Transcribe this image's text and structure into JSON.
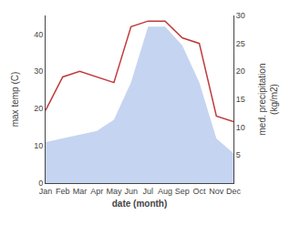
{
  "chart_data": {
    "type": "line",
    "categories": [
      "Jan",
      "Feb",
      "Mar",
      "Apr",
      "May",
      "Jun",
      "Jul",
      "Aug",
      "Sep",
      "Oct",
      "Nov",
      "Dec"
    ],
    "series": [
      {
        "name": "max temp",
        "type": "area",
        "color": "#c5d4f0",
        "values": [
          11,
          12,
          13,
          14,
          17,
          27,
          42,
          42,
          37,
          27,
          12,
          8
        ]
      },
      {
        "name": "precipitation",
        "type": "line",
        "color": "#c0393b",
        "axis": "y2",
        "values": [
          13,
          19,
          20,
          19,
          18,
          28,
          29,
          29,
          26,
          25,
          12,
          11
        ]
      }
    ],
    "x_label": "date (month)",
    "y_label": "max temp (C)",
    "y2_label": "med. precipitation\n(kg/m2)",
    "ylim": [
      0,
      45
    ],
    "yticks": [
      0,
      10,
      20,
      30,
      40
    ],
    "y2lim": [
      0,
      30
    ],
    "y2ticks": [
      5,
      10,
      15,
      20,
      25,
      30
    ],
    "grid": false,
    "legend": false
  }
}
